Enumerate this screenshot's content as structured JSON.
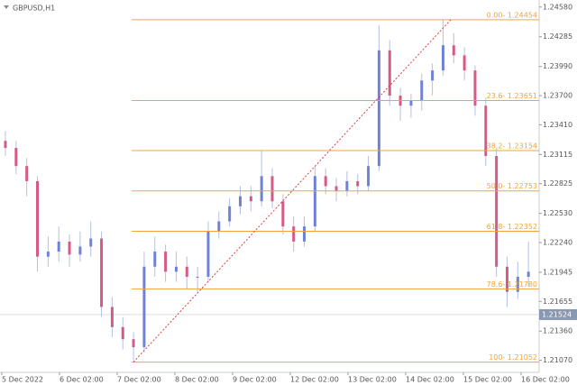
{
  "chart_data": {
    "type": "candlestick",
    "title": "GBPUSD,H1",
    "ylim": [
      1.2095,
      1.2465
    ],
    "yticks": [
      {
        "value": 1.2458,
        "label": "1.24580"
      },
      {
        "value": 1.24285,
        "label": "1.24285"
      },
      {
        "value": 1.2399,
        "label": "1.23990"
      },
      {
        "value": 1.237,
        "label": "1.23700"
      },
      {
        "value": 1.2341,
        "label": "1.23410"
      },
      {
        "value": 1.23115,
        "label": "1.23115"
      },
      {
        "value": 1.22825,
        "label": "1.22825"
      },
      {
        "value": 1.2253,
        "label": "1.22530"
      },
      {
        "value": 1.2224,
        "label": "1.22240"
      },
      {
        "value": 1.21945,
        "label": "1.21945"
      },
      {
        "value": 1.21655,
        "label": "1.21655"
      },
      {
        "value": 1.2136,
        "label": "1.21360"
      },
      {
        "value": 1.2107,
        "label": "1.21070"
      }
    ],
    "xlabels": [
      "5 Dec 2022",
      "6 Dec 02:00",
      "7 Dec 02:00",
      "8 Dec 02:00",
      "9 Dec 02:00",
      "12 Dec 02:00",
      "13 Dec 02:00",
      "14 Dec 02:00",
      "15 Dec 02:00",
      "16 Dec 02:00"
    ],
    "up_color": "#6f82d8",
    "down_color": "#d65a86",
    "wick_color": "#b4c0e6",
    "ohlc": [
      [
        1.2325,
        1.2335,
        1.231,
        1.2318
      ],
      [
        1.2318,
        1.2325,
        1.2292,
        1.23
      ],
      [
        1.23,
        1.2308,
        1.227,
        1.2285
      ],
      [
        1.2285,
        1.229,
        1.2195,
        1.221
      ],
      [
        1.221,
        1.223,
        1.22,
        1.2215
      ],
      [
        1.2215,
        1.224,
        1.2205,
        1.2225
      ],
      [
        1.2225,
        1.2232,
        1.22,
        1.2212
      ],
      [
        1.2212,
        1.2235,
        1.2205,
        1.222
      ],
      [
        1.222,
        1.2245,
        1.221,
        1.2228
      ],
      [
        1.2228,
        1.2235,
        1.215,
        1.216
      ],
      [
        1.216,
        1.217,
        1.213,
        1.214
      ],
      [
        1.214,
        1.215,
        1.2118,
        1.2128
      ],
      [
        1.2128,
        1.2135,
        1.2107,
        1.212
      ],
      [
        1.212,
        1.2215,
        1.2115,
        1.22
      ],
      [
        1.22,
        1.223,
        1.219,
        1.2215
      ],
      [
        1.2215,
        1.2222,
        1.2185,
        1.2195
      ],
      [
        1.2195,
        1.2215,
        1.2185,
        1.22
      ],
      [
        1.22,
        1.221,
        1.2178,
        1.219
      ],
      [
        1.219,
        1.22,
        1.2175,
        1.219
      ],
      [
        1.219,
        1.2245,
        1.2185,
        1.2235
      ],
      [
        1.2235,
        1.2255,
        1.2228,
        1.2245
      ],
      [
        1.2245,
        1.2268,
        1.224,
        1.226
      ],
      [
        1.226,
        1.228,
        1.2252,
        1.227
      ],
      [
        1.227,
        1.228,
        1.2255,
        1.2265
      ],
      [
        1.2265,
        1.2315,
        1.226,
        1.229
      ],
      [
        1.229,
        1.2298,
        1.2258,
        1.2265
      ],
      [
        1.2265,
        1.2272,
        1.2232,
        1.224
      ],
      [
        1.224,
        1.225,
        1.2215,
        1.2225
      ],
      [
        1.2225,
        1.225,
        1.222,
        1.224
      ],
      [
        1.224,
        1.23,
        1.2235,
        1.229
      ],
      [
        1.229,
        1.2298,
        1.2272,
        1.228
      ],
      [
        1.228,
        1.2288,
        1.2265,
        1.2275
      ],
      [
        1.2275,
        1.2295,
        1.227,
        1.2285
      ],
      [
        1.2285,
        1.2292,
        1.2272,
        1.228
      ],
      [
        1.228,
        1.231,
        1.2275,
        1.23
      ],
      [
        1.23,
        1.244,
        1.2295,
        1.2415
      ],
      [
        1.2415,
        1.2425,
        1.236,
        1.237
      ],
      [
        1.237,
        1.2378,
        1.2345,
        1.236
      ],
      [
        1.236,
        1.2372,
        1.2348,
        1.2365
      ],
      [
        1.2365,
        1.2392,
        1.2355,
        1.2385
      ],
      [
        1.2385,
        1.2402,
        1.237,
        1.2395
      ],
      [
        1.2395,
        1.2445,
        1.239,
        1.242
      ],
      [
        1.242,
        1.2432,
        1.2402,
        1.241
      ],
      [
        1.241,
        1.2418,
        1.2385,
        1.2395
      ],
      [
        1.2395,
        1.24,
        1.235,
        1.236
      ],
      [
        1.236,
        1.2368,
        1.23,
        1.231
      ],
      [
        1.231,
        1.2318,
        1.219,
        1.22
      ],
      [
        1.22,
        1.221,
        1.216,
        1.2175
      ],
      [
        1.2175,
        1.2205,
        1.2168,
        1.219
      ],
      [
        1.219,
        1.2225,
        1.218,
        1.2195
      ]
    ],
    "fib_color": "#f2a33a",
    "fib_levels": [
      {
        "value": 1.24454,
        "label": "0.00- 1.24454"
      },
      {
        "value": 1.23651,
        "label": "23.6- 1.23651"
      },
      {
        "value": 1.23154,
        "label": "38.2- 1.23154"
      },
      {
        "value": 1.22753,
        "label": "50.0- 1.22753"
      },
      {
        "value": 1.22352,
        "label": "61.8- 1.22352"
      },
      {
        "value": 1.2178,
        "label": "78.6- 1.21780"
      },
      {
        "value": 1.21052,
        "label": "100- 1.21052"
      }
    ],
    "current_price": {
      "value": 1.21524,
      "label": "1.21524"
    }
  }
}
